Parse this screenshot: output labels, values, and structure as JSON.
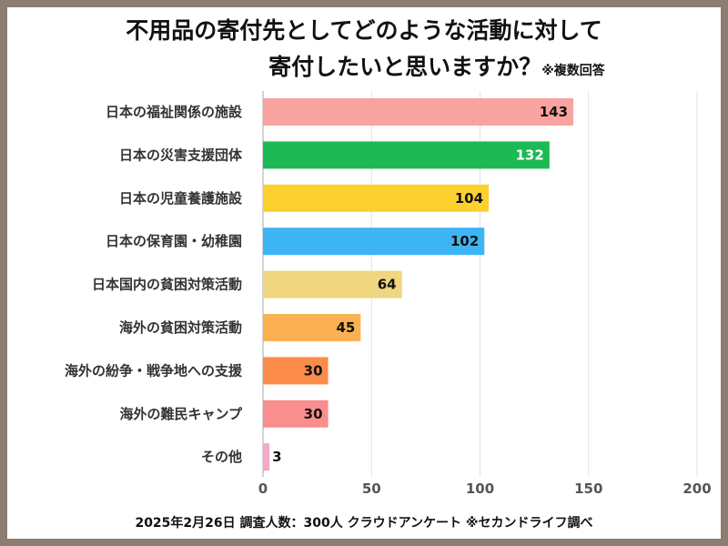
{
  "title": {
    "line1": "不用品の寄付先としてどのような活動に対して",
    "line2": "寄付したいと思いますか？",
    "note": "※複数回答"
  },
  "footer": "2025年2月26日 調査人数：300人 クラウドアンケート ※セカンドライフ調べ",
  "chart_data": {
    "type": "bar",
    "orientation": "horizontal",
    "categories": [
      "日本の福祉関係の施設",
      "日本の災害支援団体",
      "日本の児童養護施設",
      "日本の保育園・幼稚園",
      "日本国内の貧困対策活動",
      "海外の貧困対策活動",
      "海外の紛争・戦争地への支援",
      "海外の難民キャンプ",
      "その他"
    ],
    "values": [
      143,
      132,
      104,
      102,
      64,
      45,
      30,
      30,
      3
    ],
    "colors": [
      "#f9a3a0",
      "#1db954",
      "#fbd02f",
      "#3db5f5",
      "#efd67f",
      "#fbb153",
      "#fc8c4a",
      "#fa8d8d",
      "#f4a9c8"
    ],
    "value_label_colors": [
      "#111111",
      "#ffffff",
      "#111111",
      "#111111",
      "#111111",
      "#111111",
      "#111111",
      "#111111",
      "#111111"
    ],
    "xlim": [
      0,
      200
    ],
    "xticks": [
      "0",
      "50",
      "100",
      "150",
      "200"
    ],
    "grid": true
  }
}
